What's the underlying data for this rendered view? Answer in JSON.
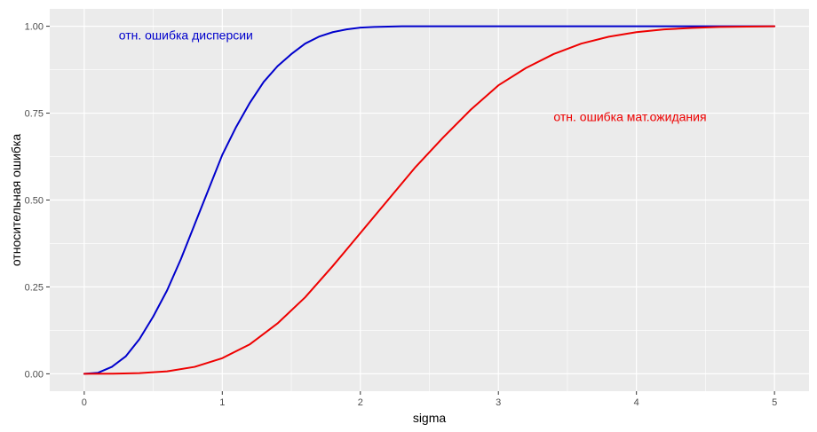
{
  "chart_data": {
    "type": "line",
    "xlabel": "sigma",
    "ylabel": "относительная ошибка",
    "xlim": [
      -0.25,
      5.25
    ],
    "ylim": [
      -0.05,
      1.05
    ],
    "x_ticks": [
      0,
      1,
      2,
      3,
      4,
      5
    ],
    "x_tick_labels": [
      "0",
      "1",
      "2",
      "3",
      "4",
      "5"
    ],
    "y_ticks": [
      0,
      0.25,
      0.5,
      0.75,
      1.0
    ],
    "y_tick_labels": [
      "0.00",
      "0.25",
      "0.50",
      "0.75",
      "1.00"
    ],
    "grid": true,
    "background": "#ebebeb",
    "gridline_color": "#ffffff",
    "series": [
      {
        "color": "#0000cc",
        "x": [
          0,
          0.1,
          0.2,
          0.3,
          0.4,
          0.5,
          0.6,
          0.7,
          0.8,
          0.9,
          1.0,
          1.1,
          1.2,
          1.3,
          1.4,
          1.5,
          1.6,
          1.7,
          1.8,
          1.9,
          2.0,
          2.1,
          2.2,
          2.3,
          2.4,
          2.5,
          3.0,
          3.5,
          4.0,
          4.5,
          5.0
        ],
        "values": [
          0.0,
          0.003,
          0.02,
          0.05,
          0.1,
          0.165,
          0.24,
          0.33,
          0.43,
          0.53,
          0.63,
          0.71,
          0.78,
          0.84,
          0.885,
          0.92,
          0.95,
          0.97,
          0.983,
          0.991,
          0.996,
          0.998,
          0.999,
          1.0,
          1.0,
          1.0,
          1.0,
          1.0,
          1.0,
          1.0,
          1.0
        ]
      },
      {
        "color": "#ee0000",
        "x": [
          0,
          0.2,
          0.4,
          0.6,
          0.8,
          1.0,
          1.2,
          1.4,
          1.6,
          1.8,
          2.0,
          2.2,
          2.4,
          2.6,
          2.8,
          3.0,
          3.2,
          3.4,
          3.6,
          3.8,
          4.0,
          4.2,
          4.4,
          4.6,
          4.8,
          5.0
        ],
        "values": [
          0.0,
          0.0003,
          0.002,
          0.007,
          0.02,
          0.045,
          0.085,
          0.145,
          0.22,
          0.31,
          0.405,
          0.5,
          0.595,
          0.68,
          0.76,
          0.83,
          0.88,
          0.92,
          0.95,
          0.97,
          0.983,
          0.991,
          0.995,
          0.998,
          0.999,
          1.0
        ]
      }
    ],
    "annotations": [
      {
        "text": "отн. ошибка дисперсии",
        "x": 0.25,
        "y": 0.975,
        "color": "#0000cc"
      },
      {
        "text": "отн. ошибка мат.ожидания",
        "x": 3.4,
        "y": 0.74,
        "color": "#ee0000"
      }
    ]
  }
}
